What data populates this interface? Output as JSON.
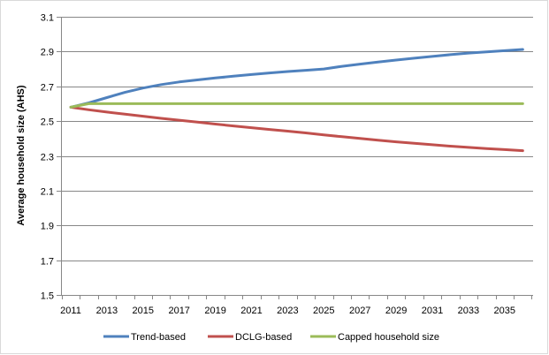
{
  "chart_data": {
    "type": "line",
    "ylabel": "Average household size (AHS)",
    "xlabel": "",
    "ylim": [
      1.5,
      3.1
    ],
    "y_ticks": [
      1.5,
      1.7,
      1.9,
      2.1,
      2.3,
      2.5,
      2.7,
      2.9,
      3.1
    ],
    "y_tick_labels": [
      "1.5",
      "1.7",
      "1.9",
      "2.1",
      "2.3",
      "2.5",
      "2.7",
      "2.9",
      "3.1"
    ],
    "xlim": [
      2011,
      2036
    ],
    "x_ticks": [
      2011,
      2013,
      2015,
      2017,
      2019,
      2021,
      2023,
      2025,
      2027,
      2029,
      2031,
      2033,
      2035
    ],
    "x_tick_labels": [
      "2011",
      "2013",
      "2015",
      "2017",
      "2019",
      "2021",
      "2023",
      "2025",
      "2027",
      "2029",
      "2031",
      "2033",
      "2035"
    ],
    "grid": "horizontal",
    "legend_position": "bottom",
    "x": [
      2011,
      2012,
      2013,
      2014,
      2015,
      2016,
      2017,
      2018,
      2019,
      2020,
      2021,
      2022,
      2023,
      2024,
      2025,
      2026,
      2027,
      2028,
      2029,
      2030,
      2031,
      2032,
      2033,
      2034,
      2035,
      2036
    ],
    "series": [
      {
        "name": "Trend-based",
        "color": "#4f81bd",
        "values": [
          2.58,
          2.605,
          2.635,
          2.665,
          2.69,
          2.71,
          2.725,
          2.737,
          2.748,
          2.758,
          2.768,
          2.777,
          2.785,
          2.792,
          2.8,
          2.815,
          2.828,
          2.84,
          2.851,
          2.862,
          2.872,
          2.882,
          2.891,
          2.898,
          2.905,
          2.912
        ]
      },
      {
        "name": "DCLG-based",
        "color": "#c0504d",
        "values": [
          2.58,
          2.565,
          2.552,
          2.54,
          2.528,
          2.516,
          2.505,
          2.494,
          2.483,
          2.472,
          2.462,
          2.452,
          2.442,
          2.432,
          2.421,
          2.41,
          2.4,
          2.39,
          2.381,
          2.372,
          2.364,
          2.356,
          2.349,
          2.342,
          2.336,
          2.33
        ]
      },
      {
        "name": "Capped household size",
        "color": "#9bbb59",
        "values": [
          2.58,
          2.6,
          2.6,
          2.6,
          2.6,
          2.6,
          2.6,
          2.6,
          2.6,
          2.6,
          2.6,
          2.6,
          2.6,
          2.6,
          2.6,
          2.6,
          2.6,
          2.6,
          2.6,
          2.6,
          2.6,
          2.6,
          2.6,
          2.6,
          2.6,
          2.6
        ]
      }
    ]
  },
  "colors": {
    "gridline": "#878787",
    "axis": "#878787",
    "frame": "#d9d9d9"
  }
}
